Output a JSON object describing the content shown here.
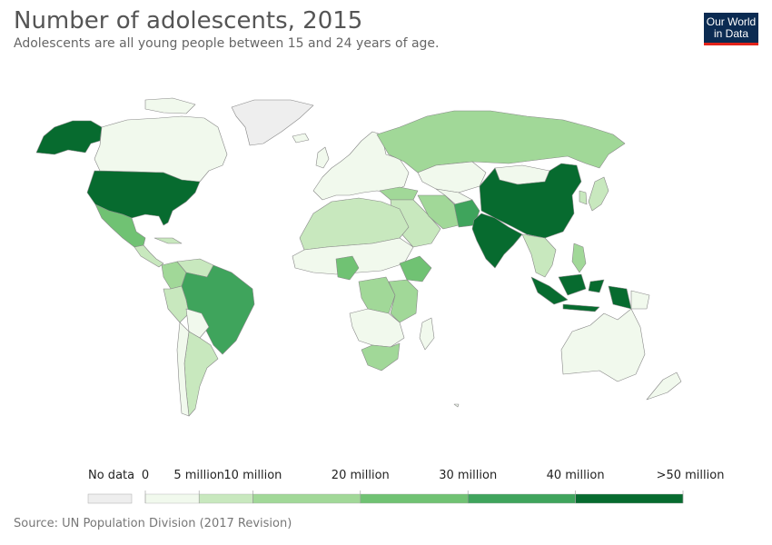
{
  "header": {
    "title": "Number of adolescents, 2015",
    "subtitle": "Adolescents are all young people between 15 and 24 years of age.",
    "logo_line1": "Our World",
    "logo_line2": "in Data"
  },
  "colors": {
    "no_data": "#eeeeee",
    "bin0": "#f1f9ed",
    "bin1": "#c8e8be",
    "bin2": "#a1d898",
    "bin3": "#70c273",
    "bin4": "#3fa45c",
    "bin5": "#076b2f",
    "border": "#888888"
  },
  "legend": {
    "no_data_label": "No data",
    "bins": [
      {
        "label_start": "0",
        "min": 0,
        "max": 5000000,
        "color": "#f1f9ed"
      },
      {
        "label_start": "5 million",
        "min": 5000000,
        "max": 10000000,
        "color": "#c8e8be"
      },
      {
        "label_start": "10 million",
        "min": 10000000,
        "max": 20000000,
        "color": "#a1d898"
      },
      {
        "label_start": "20 million",
        "min": 20000000,
        "max": 30000000,
        "color": "#70c273"
      },
      {
        "label_start": "30 million",
        "min": 30000000,
        "max": 40000000,
        "color": "#3fa45c"
      },
      {
        "label_start": "40 million",
        "min": 40000000,
        "max": 50000000,
        "color": "#076b2f"
      }
    ],
    "end_label": ">50 million"
  },
  "map_data": {
    "regions": [
      {
        "name": "Alaska",
        "bin": 5
      },
      {
        "name": "Canada",
        "bin": 0
      },
      {
        "name": "Greenland",
        "bin": -1
      },
      {
        "name": "United States",
        "bin": 5
      },
      {
        "name": "Mexico",
        "bin": 3
      },
      {
        "name": "Central America",
        "bin": 1
      },
      {
        "name": "Colombia",
        "bin": 2
      },
      {
        "name": "Venezuela",
        "bin": 1
      },
      {
        "name": "Peru",
        "bin": 1
      },
      {
        "name": "Brazil",
        "bin": 4
      },
      {
        "name": "Bolivia",
        "bin": 0
      },
      {
        "name": "Argentina",
        "bin": 1
      },
      {
        "name": "Chile",
        "bin": 0
      },
      {
        "name": "Western Europe",
        "bin": 0
      },
      {
        "name": "Russia",
        "bin": 2
      },
      {
        "name": "Kazakhstan",
        "bin": 0
      },
      {
        "name": "Turkey",
        "bin": 2
      },
      {
        "name": "Iran",
        "bin": 2
      },
      {
        "name": "Pakistan",
        "bin": 4
      },
      {
        "name": "India",
        "bin": 5
      },
      {
        "name": "China",
        "bin": 5
      },
      {
        "name": "Mongolia",
        "bin": 0
      },
      {
        "name": "Japan",
        "bin": 1
      },
      {
        "name": "Southeast Asia",
        "bin": 1
      },
      {
        "name": "Indonesia",
        "bin": 5
      },
      {
        "name": "Philippines",
        "bin": 2
      },
      {
        "name": "Australia",
        "bin": 0
      },
      {
        "name": "New Zealand",
        "bin": 0
      },
      {
        "name": "North Africa",
        "bin": 1
      },
      {
        "name": "Sahel",
        "bin": 0
      },
      {
        "name": "Nigeria",
        "bin": 3
      },
      {
        "name": "Ethiopia",
        "bin": 3
      },
      {
        "name": "DR Congo",
        "bin": 2
      },
      {
        "name": "East Africa",
        "bin": 2
      },
      {
        "name": "Southern Africa",
        "bin": 0
      },
      {
        "name": "South Africa",
        "bin": 2
      },
      {
        "name": "Madagascar",
        "bin": 0
      }
    ]
  },
  "footer": {
    "source": "Source: UN Population Division (2017 Revision)"
  }
}
